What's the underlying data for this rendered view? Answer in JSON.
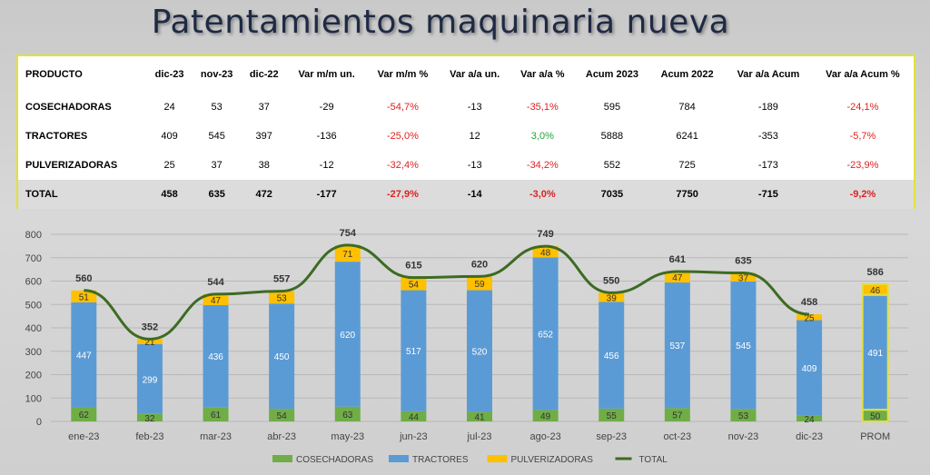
{
  "title": "Patentamientos maquinaria nueva",
  "table": {
    "headers": [
      "PRODUCTO",
      "dic-23",
      "nov-23",
      "dic-22",
      "Var m/m un.",
      "Var m/m %",
      "Var a/a un.",
      "Var a/a %",
      "Acum 2023",
      "Acum 2022",
      "Var a/a Acum",
      "Var a/a Acum %"
    ],
    "rows": [
      [
        "COSECHADORAS",
        "24",
        "53",
        "37",
        "-29",
        "-54,7%",
        "-13",
        "-35,1%",
        "595",
        "784",
        "-189",
        "-24,1%"
      ],
      [
        "TRACTORES",
        "409",
        "545",
        "397",
        "-136",
        "-25,0%",
        "12",
        "3,0%",
        "5888",
        "6241",
        "-353",
        "-5,7%"
      ],
      [
        "PULVERIZADORAS",
        "25",
        "37",
        "38",
        "-12",
        "-32,4%",
        "-13",
        "-34,2%",
        "552",
        "725",
        "-173",
        "-23,9%"
      ],
      [
        "TOTAL",
        "458",
        "635",
        "472",
        "-177",
        "-27,9%",
        "-14",
        "-3,0%",
        "7035",
        "7750",
        "-715",
        "-9,2%"
      ]
    ]
  },
  "chart_data": {
    "type": "bar",
    "stacked": true,
    "categories": [
      "ene-23",
      "feb-23",
      "mar-23",
      "abr-23",
      "may-23",
      "jun-23",
      "jul-23",
      "ago-23",
      "sep-23",
      "oct-23",
      "nov-23",
      "dic-23",
      "PROM"
    ],
    "series": [
      {
        "name": "COSECHADORAS",
        "color": "#70ad47",
        "values": [
          62,
          32,
          61,
          54,
          63,
          44,
          41,
          49,
          55,
          57,
          53,
          24,
          50
        ]
      },
      {
        "name": "TRACTORES",
        "color": "#5b9bd5",
        "values": [
          447,
          299,
          436,
          450,
          620,
          517,
          520,
          652,
          456,
          537,
          545,
          409,
          491
        ]
      },
      {
        "name": "PULVERIZADORAS",
        "color": "#ffc000",
        "values": [
          51,
          21,
          47,
          53,
          71,
          54,
          59,
          48,
          39,
          47,
          37,
          25,
          46
        ]
      },
      {
        "name": "TOTAL",
        "type": "line",
        "color": "#3d6b22",
        "values": [
          560,
          352,
          544,
          557,
          754,
          615,
          620,
          749,
          550,
          641,
          635,
          458,
          586
        ]
      }
    ],
    "ylim": [
      0,
      800
    ],
    "yticks": [
      0,
      100,
      200,
      300,
      400,
      500,
      600,
      700,
      800
    ],
    "grid": true,
    "legend": "bottom"
  }
}
